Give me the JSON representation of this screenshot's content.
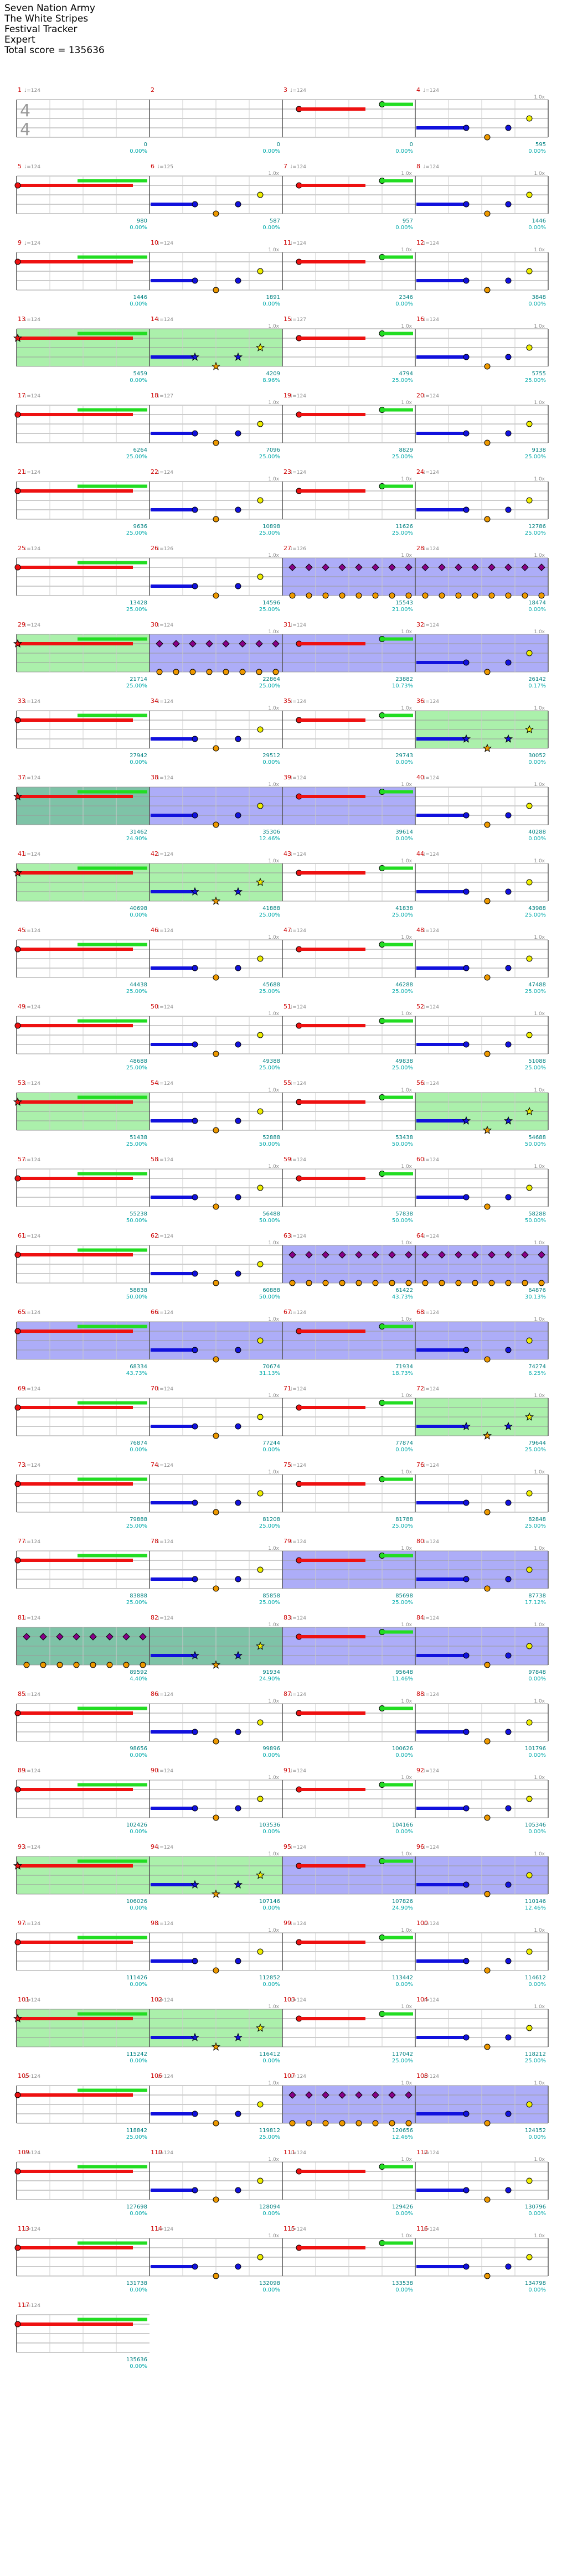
{
  "header": {
    "song_title": "Seven Nation Army",
    "artist": "The White Stripes",
    "tracker": "Festival Tracker",
    "difficulty": "Expert",
    "total_score_label": "Total score = 135636"
  },
  "time_signature": {
    "numerator": "4",
    "denominator": "4"
  },
  "colors": {
    "green": "#22dd22",
    "red": "#ee1111",
    "yellow": "#eeee00",
    "blue": "#1111dd",
    "orange": "#ee9900",
    "purple": "#880088",
    "overdrive": "#44dd44",
    "solo": "#3333ee",
    "measure_num": "#cc0000",
    "tempo": "#888888",
    "score": "#008080",
    "pct": "#00aaaa",
    "staff": "#9a9a9a"
  },
  "measures": [
    {
      "num": "1",
      "tempo": "♩=124",
      "mult": "",
      "score": "0",
      "pct": "0.00%"
    },
    {
      "num": "2",
      "tempo": "",
      "mult": "",
      "score": "0",
      "pct": "0.00%"
    },
    {
      "num": "3",
      "tempo": "♩=124",
      "mult": "",
      "score": "0",
      "pct": "0.00%"
    },
    {
      "num": "4",
      "tempo": "♩=124",
      "mult": "1.0x",
      "score": "595",
      "pct": "0.00%"
    },
    {
      "num": "5",
      "tempo": "♩=124",
      "mult": "",
      "score": "980",
      "pct": "0.00%"
    },
    {
      "num": "6",
      "tempo": "♩=125",
      "mult": "1.0x",
      "score": "587",
      "pct": "0.00%"
    },
    {
      "num": "7",
      "tempo": "♩=124",
      "mult": "1.0x",
      "score": "957",
      "pct": "0.00%"
    },
    {
      "num": "8",
      "tempo": "♩=124",
      "mult": "1.0x",
      "score": "1446",
      "pct": "0.00%"
    },
    {
      "num": "9",
      "tempo": "♩=124",
      "mult": "",
      "score": "1446",
      "pct": "0.00%"
    },
    {
      "num": "10",
      "tempo": "♩=124",
      "mult": "1.0x",
      "score": "1891",
      "pct": "0.00%"
    },
    {
      "num": "11",
      "tempo": "♩=124",
      "mult": "1.0x",
      "score": "2346",
      "pct": "0.00%"
    },
    {
      "num": "12",
      "tempo": "♩=124",
      "mult": "1.0x",
      "score": "3848",
      "pct": "0.00%"
    },
    {
      "num": "13",
      "tempo": "♩=124",
      "mult": "",
      "score": "5459",
      "pct": "0.00%"
    },
    {
      "num": "14",
      "tempo": "♩=124",
      "mult": "1.0x",
      "score": "4209",
      "pct": "8.96%"
    },
    {
      "num": "15",
      "tempo": "♩=127",
      "mult": "1.0x",
      "score": "4794",
      "pct": "25.00%"
    },
    {
      "num": "16",
      "tempo": "♩=124",
      "mult": "1.0x",
      "score": "5755",
      "pct": "25.00%"
    },
    {
      "num": "17",
      "tempo": "♩=124",
      "mult": "",
      "score": "6264",
      "pct": "25.00%"
    },
    {
      "num": "18",
      "tempo": "♩=127",
      "mult": "1.0x",
      "score": "7096",
      "pct": "25.00%"
    },
    {
      "num": "19",
      "tempo": "♩=124",
      "mult": "1.0x",
      "score": "8829",
      "pct": "25.00%"
    },
    {
      "num": "20",
      "tempo": "♩=124",
      "mult": "1.0x",
      "score": "9138",
      "pct": "25.00%"
    },
    {
      "num": "21",
      "tempo": "♩=124",
      "mult": "",
      "score": "9636",
      "pct": "25.00%"
    },
    {
      "num": "22",
      "tempo": "♩=124",
      "mult": "1.0x",
      "score": "10898",
      "pct": "25.00%"
    },
    {
      "num": "23",
      "tempo": "♩=124",
      "mult": "1.0x",
      "score": "11626",
      "pct": "25.00%"
    },
    {
      "num": "24",
      "tempo": "♩=124",
      "mult": "1.0x",
      "score": "12786",
      "pct": "25.00%"
    },
    {
      "num": "25",
      "tempo": "♩=124",
      "mult": "",
      "score": "13428",
      "pct": "25.00%"
    },
    {
      "num": "26",
      "tempo": "♩=126",
      "mult": "1.0x",
      "score": "14596",
      "pct": "25.00%"
    },
    {
      "num": "27",
      "tempo": "♩=126",
      "mult": "1.0x",
      "score": "15543",
      "pct": "21.00%"
    },
    {
      "num": "28",
      "tempo": "♩=124",
      "mult": "1.0x",
      "score": "18474",
      "pct": "0.00%"
    },
    {
      "num": "29",
      "tempo": "♩=124",
      "mult": "",
      "score": "21714",
      "pct": "25.00%"
    },
    {
      "num": "30",
      "tempo": "♩=124",
      "mult": "1.0x",
      "score": "22864",
      "pct": "25.00%"
    },
    {
      "num": "31",
      "tempo": "♩=124",
      "mult": "1.0x",
      "score": "23882",
      "pct": "10.73%"
    },
    {
      "num": "32",
      "tempo": "♩=124",
      "mult": "1.0x",
      "score": "26142",
      "pct": "0.17%"
    },
    {
      "num": "33",
      "tempo": "♩=124",
      "mult": "",
      "score": "27942",
      "pct": "0.00%"
    },
    {
      "num": "34",
      "tempo": "♩=124",
      "mult": "1.0x",
      "score": "29512",
      "pct": "0.00%"
    },
    {
      "num": "35",
      "tempo": "♩=124",
      "mult": "1.0x",
      "score": "29743",
      "pct": "0.00%"
    },
    {
      "num": "36",
      "tempo": "♩=124",
      "mult": "1.0x",
      "score": "30052",
      "pct": "0.00%"
    },
    {
      "num": "37",
      "tempo": "♩=124",
      "mult": "",
      "score": "31462",
      "pct": "24.90%"
    },
    {
      "num": "38",
      "tempo": "♩=124",
      "mult": "1.0x",
      "score": "35306",
      "pct": "12.46%"
    },
    {
      "num": "39",
      "tempo": "♩=124",
      "mult": "1.0x",
      "score": "39614",
      "pct": "0.00%"
    },
    {
      "num": "40",
      "tempo": "♩=124",
      "mult": "1.0x",
      "score": "40288",
      "pct": "0.00%"
    },
    {
      "num": "41",
      "tempo": "♩=124",
      "mult": "",
      "score": "40698",
      "pct": "0.00%"
    },
    {
      "num": "42",
      "tempo": "♩=124",
      "mult": "1.0x",
      "score": "41888",
      "pct": "25.00%"
    },
    {
      "num": "43",
      "tempo": "♩=124",
      "mult": "1.0x",
      "score": "41838",
      "pct": "25.00%"
    },
    {
      "num": "44",
      "tempo": "♩=124",
      "mult": "1.0x",
      "score": "43988",
      "pct": "25.00%"
    },
    {
      "num": "45",
      "tempo": "♩=124",
      "mult": "",
      "score": "44438",
      "pct": "25.00%"
    },
    {
      "num": "46",
      "tempo": "♩=124",
      "mult": "1.0x",
      "score": "45688",
      "pct": "25.00%"
    },
    {
      "num": "47",
      "tempo": "♩=124",
      "mult": "1.0x",
      "score": "46288",
      "pct": "25.00%"
    },
    {
      "num": "48",
      "tempo": "♩=124",
      "mult": "1.0x",
      "score": "47488",
      "pct": "25.00%"
    },
    {
      "num": "49",
      "tempo": "♩=124",
      "mult": "",
      "score": "48688",
      "pct": "25.00%"
    },
    {
      "num": "50",
      "tempo": "♩=124",
      "mult": "1.0x",
      "score": "49388",
      "pct": "25.00%"
    },
    {
      "num": "51",
      "tempo": "♩=124",
      "mult": "1.0x",
      "score": "49838",
      "pct": "25.00%"
    },
    {
      "num": "52",
      "tempo": "♩=124",
      "mult": "1.0x",
      "score": "51088",
      "pct": "25.00%"
    },
    {
      "num": "53",
      "tempo": "♩=124",
      "mult": "",
      "score": "51438",
      "pct": "25.00%"
    },
    {
      "num": "54",
      "tempo": "♩=124",
      "mult": "1.0x",
      "score": "52888",
      "pct": "50.00%"
    },
    {
      "num": "55",
      "tempo": "♩=124",
      "mult": "1.0x",
      "score": "53438",
      "pct": "50.00%"
    },
    {
      "num": "56",
      "tempo": "♩=124",
      "mult": "1.0x",
      "score": "54688",
      "pct": "50.00%"
    },
    {
      "num": "57",
      "tempo": "♩=124",
      "mult": "",
      "score": "55238",
      "pct": "50.00%"
    },
    {
      "num": "58",
      "tempo": "♩=124",
      "mult": "1.0x",
      "score": "56488",
      "pct": "50.00%"
    },
    {
      "num": "59",
      "tempo": "♩=124",
      "mult": "1.0x",
      "score": "57838",
      "pct": "50.00%"
    },
    {
      "num": "60",
      "tempo": "♩=124",
      "mult": "1.0x",
      "score": "58288",
      "pct": "50.00%"
    },
    {
      "num": "61",
      "tempo": "♩=124",
      "mult": "",
      "score": "58838",
      "pct": "50.00%"
    },
    {
      "num": "62",
      "tempo": "♩=124",
      "mult": "1.0x",
      "score": "60888",
      "pct": "50.00%"
    },
    {
      "num": "63",
      "tempo": "♩=124",
      "mult": "1.0x",
      "score": "61422",
      "pct": "43.73%"
    },
    {
      "num": "64",
      "tempo": "♩=124",
      "mult": "1.0x",
      "score": "64876",
      "pct": "30.13%"
    },
    {
      "num": "65",
      "tempo": "♩=124",
      "mult": "",
      "score": "68334",
      "pct": "43.73%"
    },
    {
      "num": "66",
      "tempo": "♩=124",
      "mult": "1.0x",
      "score": "70674",
      "pct": "31.13%"
    },
    {
      "num": "67",
      "tempo": "♩=124",
      "mult": "1.0x",
      "score": "71934",
      "pct": "18.73%"
    },
    {
      "num": "68",
      "tempo": "♩=124",
      "mult": "1.0x",
      "score": "74274",
      "pct": "6.25%"
    },
    {
      "num": "69",
      "tempo": "♩=124",
      "mult": "",
      "score": "76874",
      "pct": "0.00%"
    },
    {
      "num": "70",
      "tempo": "♩=124",
      "mult": "1.0x",
      "score": "77244",
      "pct": "0.00%"
    },
    {
      "num": "71",
      "tempo": "♩=124",
      "mult": "1.0x",
      "score": "77874",
      "pct": "0.00%"
    },
    {
      "num": "72",
      "tempo": "♩=124",
      "mult": "1.0x",
      "score": "79644",
      "pct": "25.00%"
    },
    {
      "num": "73",
      "tempo": "♩=124",
      "mult": "",
      "score": "79888",
      "pct": "25.00%"
    },
    {
      "num": "74",
      "tempo": "♩=124",
      "mult": "1.0x",
      "score": "81208",
      "pct": "25.00%"
    },
    {
      "num": "75",
      "tempo": "♩=124",
      "mult": "1.0x",
      "score": "81788",
      "pct": "25.00%"
    },
    {
      "num": "76",
      "tempo": "♩=124",
      "mult": "1.0x",
      "score": "82848",
      "pct": "25.00%"
    },
    {
      "num": "77",
      "tempo": "♩=124",
      "mult": "",
      "score": "83888",
      "pct": "25.00%"
    },
    {
      "num": "78",
      "tempo": "♩=124",
      "mult": "1.0x",
      "score": "85858",
      "pct": "25.00%"
    },
    {
      "num": "79",
      "tempo": "♩=124",
      "mult": "1.0x",
      "score": "85698",
      "pct": "25.00%"
    },
    {
      "num": "80",
      "tempo": "♩=124",
      "mult": "1.0x",
      "score": "87738",
      "pct": "17.12%"
    },
    {
      "num": "81",
      "tempo": "♩=124",
      "mult": "",
      "score": "89592",
      "pct": "4.40%"
    },
    {
      "num": "82",
      "tempo": "♩=124",
      "mult": "1.0x",
      "score": "91934",
      "pct": "24.90%"
    },
    {
      "num": "83",
      "tempo": "♩=124",
      "mult": "1.0x",
      "score": "95648",
      "pct": "11.46%"
    },
    {
      "num": "84",
      "tempo": "♩=124",
      "mult": "1.0x",
      "score": "97848",
      "pct": "0.00%"
    },
    {
      "num": "85",
      "tempo": "♩=124",
      "mult": "",
      "score": "98656",
      "pct": "0.00%"
    },
    {
      "num": "86",
      "tempo": "♩=124",
      "mult": "1.0x",
      "score": "99896",
      "pct": "0.00%"
    },
    {
      "num": "87",
      "tempo": "♩=124",
      "mult": "1.0x",
      "score": "100626",
      "pct": "0.00%"
    },
    {
      "num": "88",
      "tempo": "♩=124",
      "mult": "1.0x",
      "score": "101796",
      "pct": "0.00%"
    },
    {
      "num": "89",
      "tempo": "♩=124",
      "mult": "",
      "score": "102426",
      "pct": "0.00%"
    },
    {
      "num": "90",
      "tempo": "♩=124",
      "mult": "1.0x",
      "score": "103536",
      "pct": "0.00%"
    },
    {
      "num": "91",
      "tempo": "♩=124",
      "mult": "1.0x",
      "score": "104166",
      "pct": "0.00%"
    },
    {
      "num": "92",
      "tempo": "♩=124",
      "mult": "1.0x",
      "score": "105346",
      "pct": "0.00%"
    },
    {
      "num": "93",
      "tempo": "♩=124",
      "mult": "",
      "score": "106026",
      "pct": "0.00%"
    },
    {
      "num": "94",
      "tempo": "♩=124",
      "mult": "1.0x",
      "score": "107146",
      "pct": "0.00%"
    },
    {
      "num": "95",
      "tempo": "♩=124",
      "mult": "1.0x",
      "score": "107826",
      "pct": "24.90%"
    },
    {
      "num": "96",
      "tempo": "♩=124",
      "mult": "1.0x",
      "score": "110146",
      "pct": "12.46%"
    },
    {
      "num": "97",
      "tempo": "♩=124",
      "mult": "",
      "score": "111426",
      "pct": "0.00%"
    },
    {
      "num": "98",
      "tempo": "♩=124",
      "mult": "1.0x",
      "score": "112852",
      "pct": "0.00%"
    },
    {
      "num": "99",
      "tempo": "♩=124",
      "mult": "1.0x",
      "score": "113442",
      "pct": "0.00%"
    },
    {
      "num": "100",
      "tempo": "♩=124",
      "mult": "1.0x",
      "score": "114612",
      "pct": "0.00%"
    },
    {
      "num": "101",
      "tempo": "♩=124",
      "mult": "",
      "score": "115242",
      "pct": "0.00%"
    },
    {
      "num": "102",
      "tempo": "♩=124",
      "mult": "1.0x",
      "score": "116412",
      "pct": "0.00%"
    },
    {
      "num": "103",
      "tempo": "♩=124",
      "mult": "1.0x",
      "score": "117042",
      "pct": "25.00%"
    },
    {
      "num": "104",
      "tempo": "♩=124",
      "mult": "1.0x",
      "score": "118212",
      "pct": "25.00%"
    },
    {
      "num": "105",
      "tempo": "♩=124",
      "mult": "",
      "score": "118842",
      "pct": "25.00%"
    },
    {
      "num": "106",
      "tempo": "♩=124",
      "mult": "1.0x",
      "score": "119812",
      "pct": "25.00%"
    },
    {
      "num": "107",
      "tempo": "♩=124",
      "mult": "1.0x",
      "score": "120656",
      "pct": "12.46%"
    },
    {
      "num": "108",
      "tempo": "♩=124",
      "mult": "1.0x",
      "score": "124152",
      "pct": "0.00%"
    },
    {
      "num": "109",
      "tempo": "♩=124",
      "mult": "",
      "score": "127698",
      "pct": "0.00%"
    },
    {
      "num": "110",
      "tempo": "♩=124",
      "mult": "1.0x",
      "score": "128094",
      "pct": "0.00%"
    },
    {
      "num": "111",
      "tempo": "♩=124",
      "mult": "1.0x",
      "score": "129426",
      "pct": "0.00%"
    },
    {
      "num": "112",
      "tempo": "♩=124",
      "mult": "1.0x",
      "score": "130796",
      "pct": "0.00%"
    },
    {
      "num": "113",
      "tempo": "♩=124",
      "mult": "",
      "score": "131738",
      "pct": "0.00%"
    },
    {
      "num": "114",
      "tempo": "♩=124",
      "mult": "1.0x",
      "score": "132098",
      "pct": "0.00%"
    },
    {
      "num": "115",
      "tempo": "♩=124",
      "mult": "1.0x",
      "score": "133538",
      "pct": "0.00%"
    },
    {
      "num": "116",
      "tempo": "♩=124",
      "mult": "1.0x",
      "score": "134798",
      "pct": "0.00%"
    },
    {
      "num": "117",
      "tempo": "♩=124",
      "mult": "",
      "score": "135636",
      "pct": "0.00%"
    }
  ],
  "overdrive_measures": [
    13,
    14,
    29,
    36,
    37,
    41,
    42,
    53,
    56,
    72,
    81,
    82,
    93,
    94,
    101,
    102
  ],
  "solo_measures": [
    27,
    28,
    30,
    31,
    32,
    37,
    38,
    39,
    63,
    64,
    65,
    66,
    67,
    68,
    79,
    80,
    81,
    82,
    83,
    84,
    95,
    96,
    107,
    108
  ],
  "pattern_overrides": {
    "27": "purple",
    "28": "purple",
    "30": "purple",
    "63": "purple",
    "64": "purple",
    "81": "purple",
    "107": "purple"
  }
}
